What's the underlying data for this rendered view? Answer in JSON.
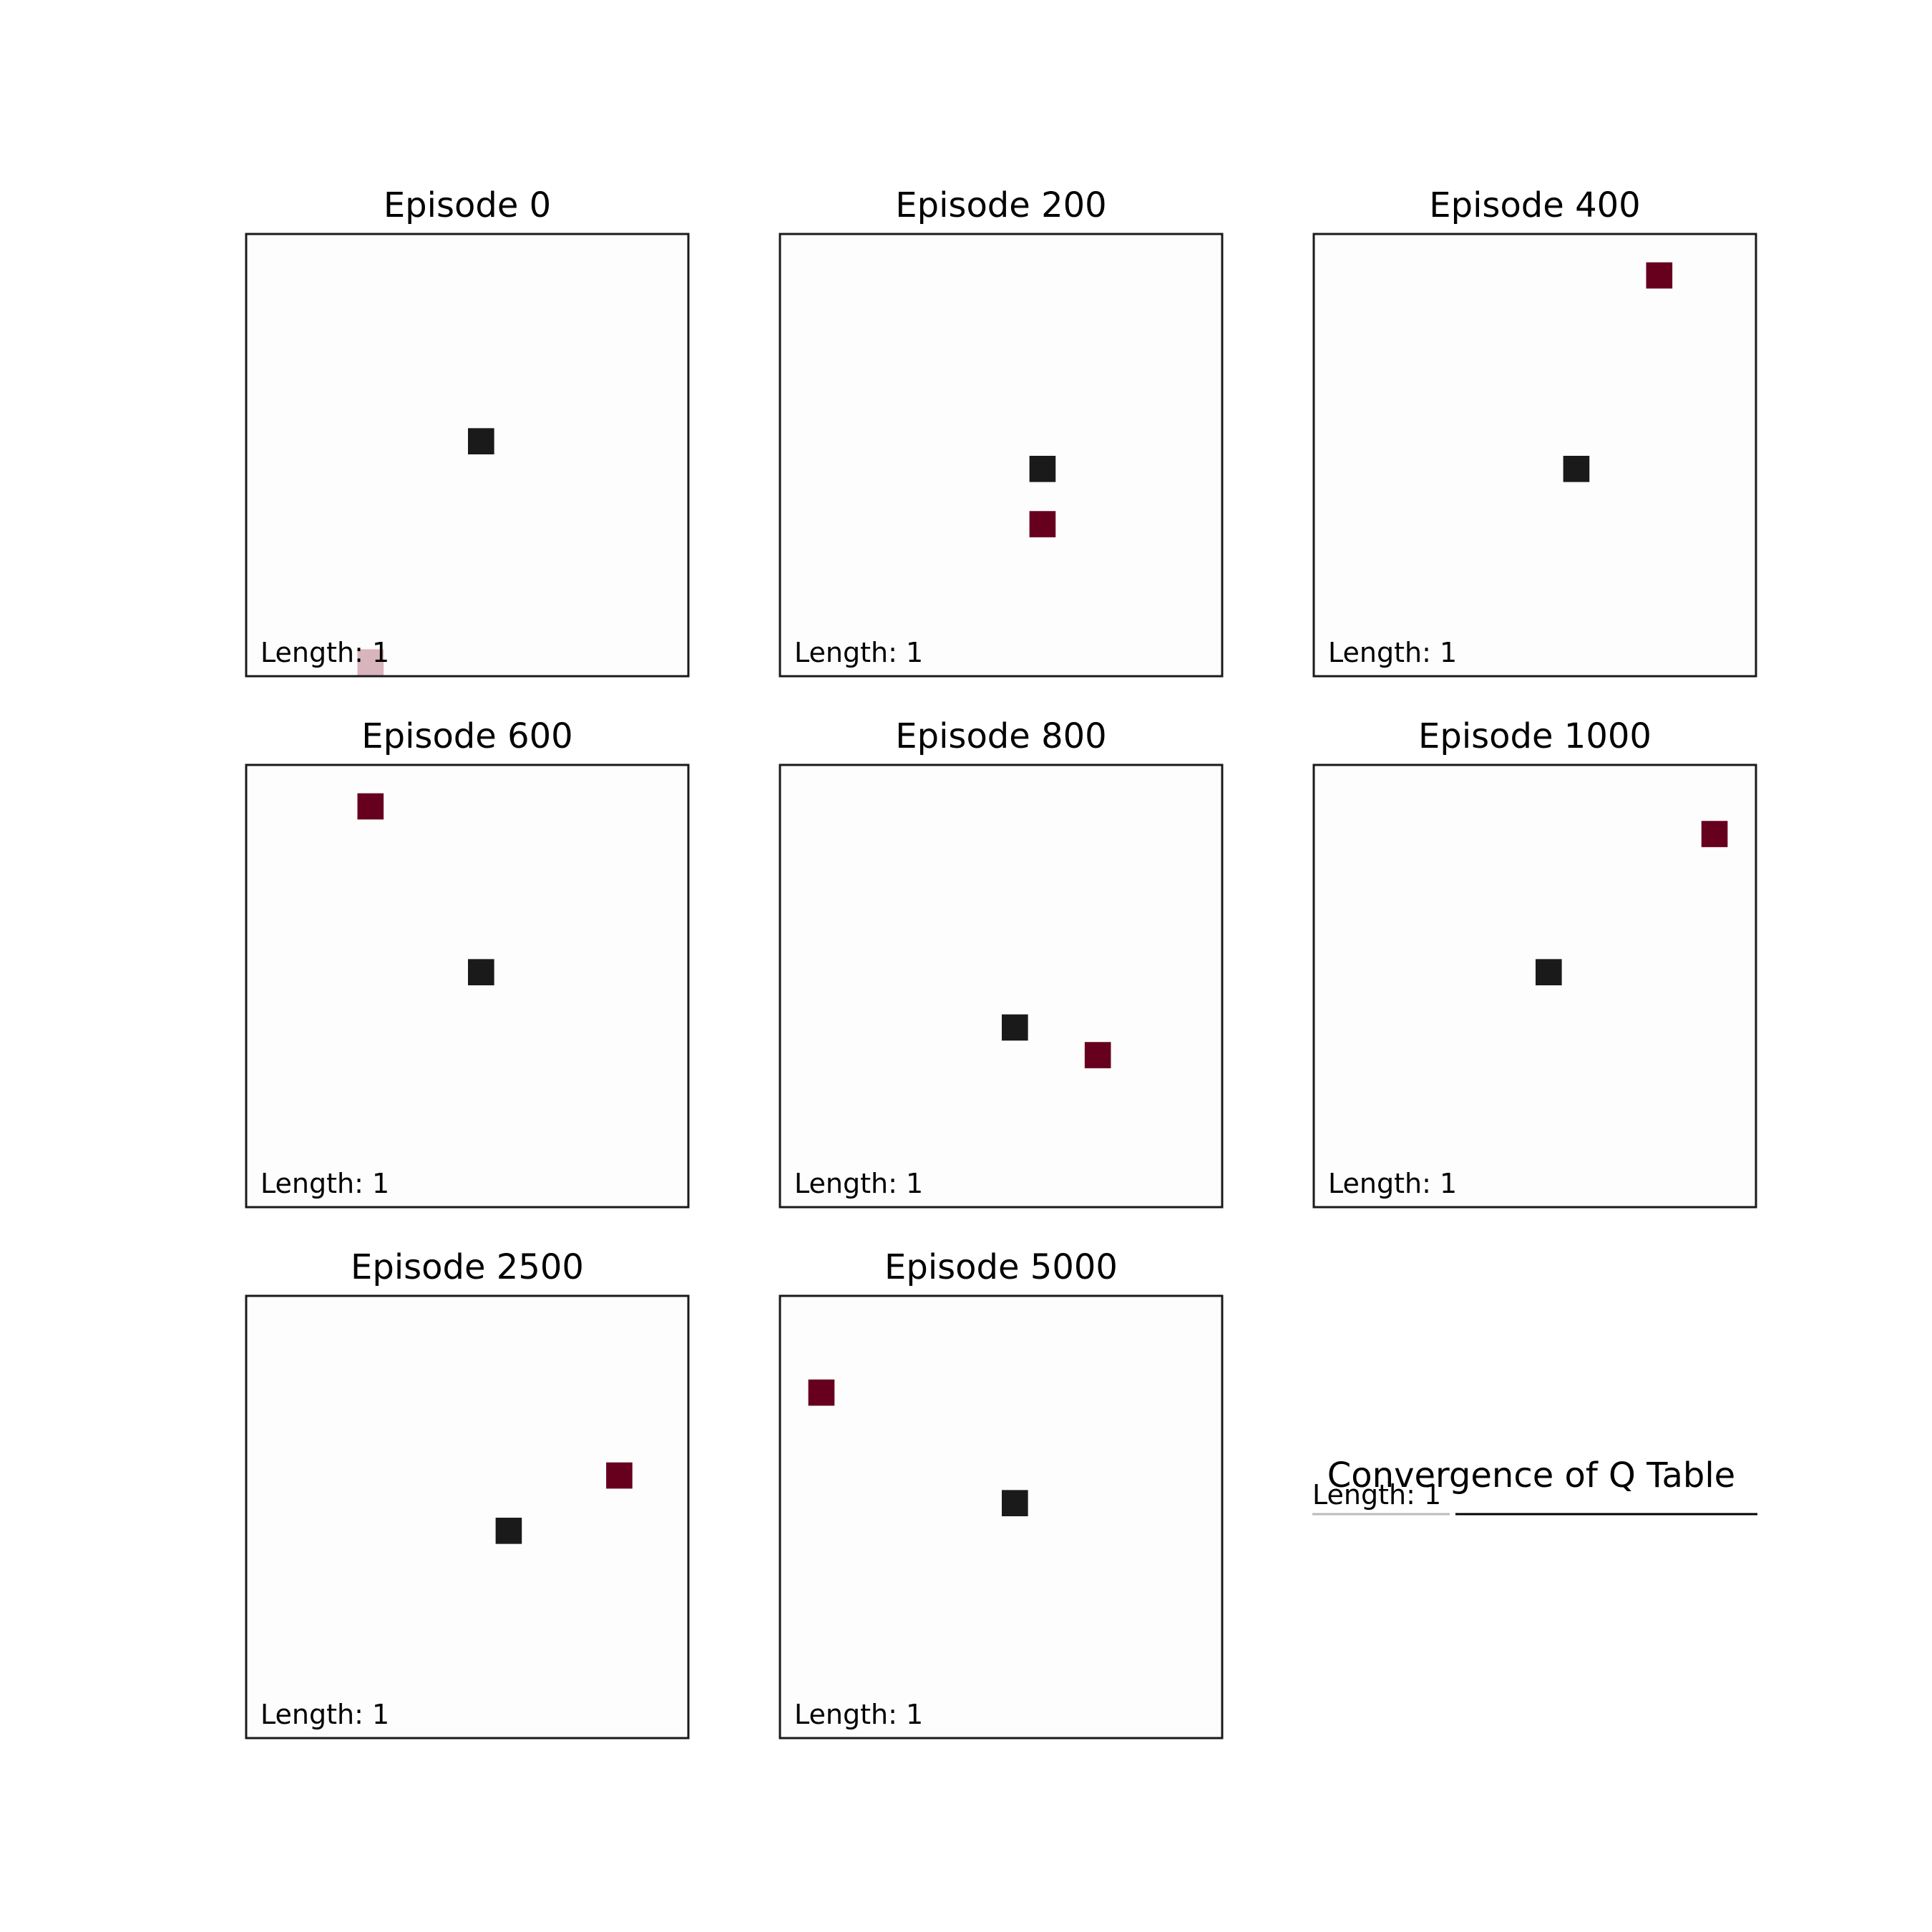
{
  "colors": {
    "background": "#ffffff",
    "board": "#fdfdfd",
    "frame": "#1a1a1a",
    "snake_head": "#1a1a1a",
    "food": "#67001f",
    "food_faded": "#d8b4bd",
    "footer_line_dark": "#000000",
    "footer_line_light": "#bbbbbb"
  },
  "chart_data": [
    {
      "type": "heatmap",
      "title": "Episode 0",
      "length_label": "Length: 1",
      "grid": false,
      "snake": [
        [
          8,
          7
        ]
      ],
      "food": [
        [
          4,
          15
        ]
      ],
      "food_style": "faded"
    },
    {
      "type": "heatmap",
      "title": "Episode 200",
      "length_label": "Length: 1",
      "grid": false,
      "snake": [
        [
          9,
          8
        ]
      ],
      "food": [
        [
          9,
          10
        ]
      ],
      "food_style": "solid"
    },
    {
      "type": "heatmap",
      "title": "Episode 400",
      "length_label": "Length: 1",
      "grid": false,
      "snake": [
        [
          9,
          8
        ]
      ],
      "food": [
        [
          12,
          1
        ]
      ],
      "food_style": "solid"
    },
    {
      "type": "heatmap",
      "title": "Episode 600",
      "length_label": "Length: 1",
      "grid": false,
      "snake": [
        [
          8,
          7
        ]
      ],
      "food": [
        [
          4,
          1
        ]
      ],
      "food_style": "solid"
    },
    {
      "type": "heatmap",
      "title": "Episode 800",
      "length_label": "Length: 1",
      "grid": false,
      "snake": [
        [
          8,
          9
        ]
      ],
      "food": [
        [
          11,
          10
        ]
      ],
      "food_style": "solid"
    },
    {
      "type": "heatmap",
      "title": "Episode 1000",
      "length_label": "Length: 1",
      "grid": false,
      "snake": [
        [
          8,
          7
        ]
      ],
      "food": [
        [
          14,
          2
        ]
      ],
      "food_style": "solid"
    },
    {
      "type": "heatmap",
      "title": "Episode 2500",
      "length_label": "Length: 1",
      "grid": false,
      "snake": [
        [
          9,
          8
        ]
      ],
      "food": [
        [
          13,
          6
        ]
      ],
      "food_style": "solid"
    },
    {
      "type": "heatmap",
      "title": "Episode 5000",
      "length_label": "Length: 1",
      "grid": false,
      "snake": [
        [
          8,
          7
        ]
      ],
      "food": [
        [
          1,
          3
        ]
      ],
      "food_style": "solid"
    }
  ],
  "footer": {
    "title": "Convergence of Q Table",
    "length_label": "Length: 1"
  }
}
